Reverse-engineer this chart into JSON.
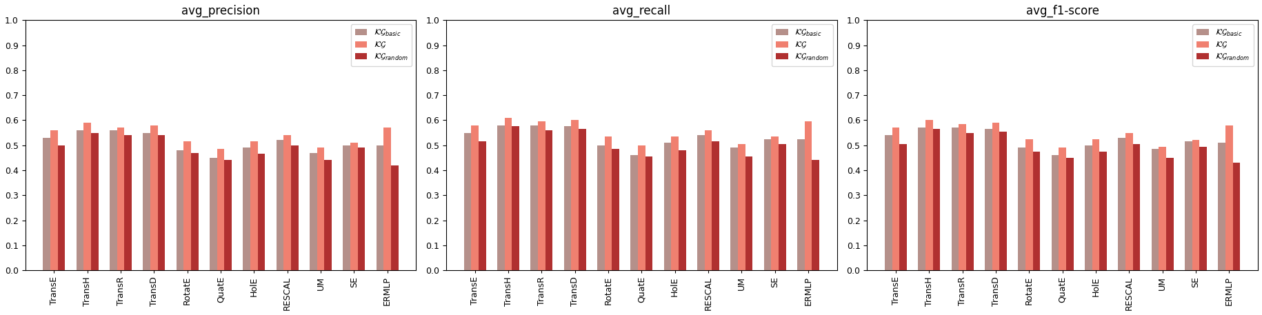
{
  "categories": [
    "TransE",
    "TransH",
    "TransR",
    "TransD",
    "RotatE",
    "QuatE",
    "HolE",
    "RESCAL",
    "UM",
    "SE",
    "ERMLP"
  ],
  "plots": [
    {
      "title": "avg_precision",
      "KG_basic": [
        0.53,
        0.56,
        0.56,
        0.55,
        0.48,
        0.45,
        0.49,
        0.52,
        0.47,
        0.5,
        0.5
      ],
      "KG": [
        0.56,
        0.59,
        0.57,
        0.58,
        0.515,
        0.485,
        0.515,
        0.54,
        0.49,
        0.51,
        0.57
      ],
      "KG_random": [
        0.5,
        0.55,
        0.54,
        0.54,
        0.47,
        0.44,
        0.465,
        0.5,
        0.44,
        0.49,
        0.42
      ]
    },
    {
      "title": "avg_recall",
      "KG_basic": [
        0.55,
        0.58,
        0.58,
        0.575,
        0.5,
        0.46,
        0.51,
        0.54,
        0.49,
        0.525,
        0.525
      ],
      "KG": [
        0.58,
        0.61,
        0.595,
        0.6,
        0.535,
        0.5,
        0.535,
        0.56,
        0.505,
        0.535,
        0.595
      ],
      "KG_random": [
        0.515,
        0.575,
        0.56,
        0.565,
        0.485,
        0.455,
        0.48,
        0.515,
        0.455,
        0.505,
        0.44
      ]
    },
    {
      "title": "avg_f1-score",
      "KG_basic": [
        0.54,
        0.57,
        0.57,
        0.565,
        0.49,
        0.46,
        0.5,
        0.53,
        0.485,
        0.515,
        0.51
      ],
      "KG": [
        0.57,
        0.6,
        0.585,
        0.59,
        0.525,
        0.49,
        0.525,
        0.55,
        0.495,
        0.52,
        0.58
      ],
      "KG_random": [
        0.505,
        0.565,
        0.55,
        0.555,
        0.475,
        0.45,
        0.475,
        0.505,
        0.45,
        0.495,
        0.43
      ]
    }
  ],
  "colors": {
    "KG_basic": "#b5908a",
    "KG": "#f08070",
    "KG_random": "#b03030"
  },
  "legend_labels": {
    "KG_basic": "$\\mathcal{KG}_{basic}$",
    "KG": "$\\mathcal{KG}$",
    "KG_random": "$\\mathcal{KG}_{random}$"
  },
  "ylim": [
    0.0,
    1.0
  ],
  "yticks": [
    0.0,
    0.1,
    0.2,
    0.3,
    0.4,
    0.5,
    0.6,
    0.7,
    0.8,
    0.9,
    1.0
  ],
  "bar_width": 0.22,
  "figsize": [
    18.31,
    4.57
  ],
  "dpi": 100
}
